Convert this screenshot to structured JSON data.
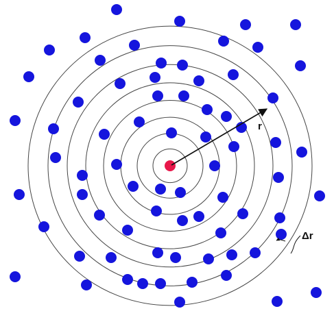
{
  "labels": {
    "radius": "r",
    "shell_width": "Δr"
  },
  "colors": {
    "background": "#ffffff",
    "reference_particle": "#e8174a",
    "particles": "#1515dd",
    "shells": "#444444",
    "arrow": "#111111"
  },
  "diagram": {
    "description_type": "radial-distribution-function-shells",
    "shell_count": 8,
    "particle_count": 74
  }
}
